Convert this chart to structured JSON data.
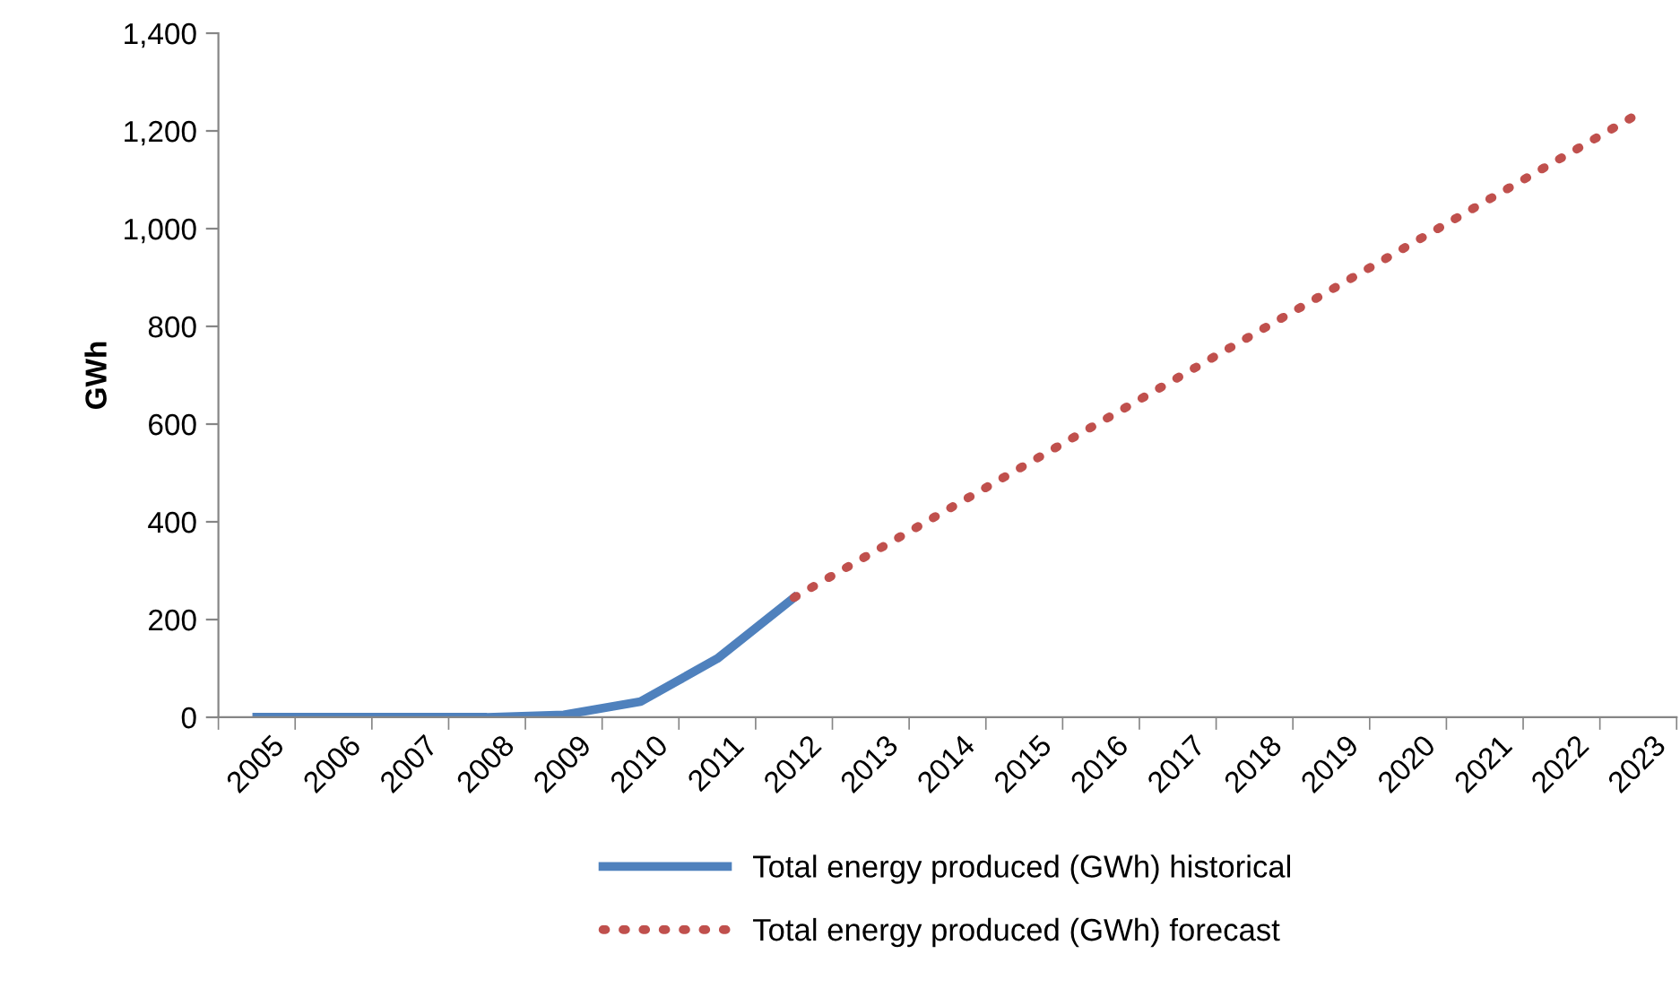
{
  "chart_data": {
    "type": "line",
    "ylabel": "GWh",
    "categories": [
      "2005",
      "2006",
      "2007",
      "2008",
      "2009",
      "2010",
      "2011",
      "2012",
      "2013",
      "2014",
      "2015",
      "2016",
      "2017",
      "2018",
      "2019",
      "2020",
      "2021",
      "2022",
      "2023"
    ],
    "series": [
      {
        "name": "Total energy produced (GWh) historical",
        "color": "#4f81bd",
        "line_style": "solid",
        "values": [
          0,
          0,
          0,
          0,
          5,
          32,
          120,
          245,
          null,
          null,
          null,
          null,
          null,
          null,
          null,
          null,
          null,
          null,
          null
        ]
      },
      {
        "name": "Total energy produced (GWh) forecast",
        "color": "#c0504d",
        "line_style": "dotted",
        "values": [
          null,
          null,
          null,
          null,
          null,
          null,
          null,
          245,
          335,
          425,
          515,
          605,
          695,
          785,
          875,
          965,
          1055,
          1145,
          1235
        ]
      }
    ],
    "ylim": [
      0,
      1400
    ],
    "yticks": [
      0,
      200,
      400,
      600,
      800,
      {
        "value": 1000,
        "label": "1,000"
      },
      {
        "value": 1200,
        "label": "1,200"
      },
      {
        "value": 1400,
        "label": "1,400"
      }
    ],
    "grid": false,
    "legend": "bottom",
    "marker": "none"
  }
}
